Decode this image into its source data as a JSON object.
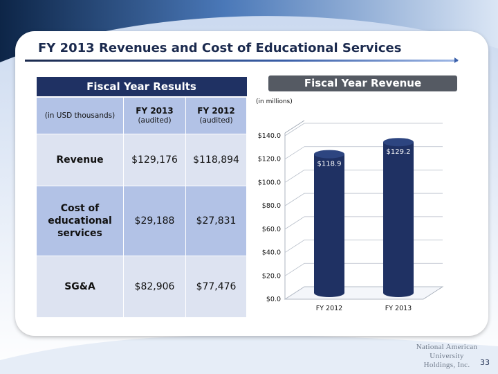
{
  "slide": {
    "title": "FY 2013 Revenues and Cost of Educational Services",
    "page_number": "33"
  },
  "table": {
    "caption": "Fiscal Year Results",
    "unit_label": "(in USD thousands)",
    "columns": [
      {
        "year": "FY 2013",
        "note": "(audited)"
      },
      {
        "year": "FY 2012",
        "note": "(audited)"
      }
    ],
    "rows": [
      {
        "label": [
          "Revenue"
        ],
        "values": [
          "$129,176",
          "$118,894"
        ]
      },
      {
        "label": [
          "Cost of",
          "educational",
          "services"
        ],
        "values": [
          "$29,188",
          "$27,831"
        ]
      },
      {
        "label": [
          "SG&A"
        ],
        "values": [
          "$82,906",
          "$77,476"
        ]
      }
    ]
  },
  "chart": {
    "header": "Fiscal Year Revenue",
    "unit_note": "(in millions)"
  },
  "chart_data": {
    "type": "bar",
    "categories": [
      "FY 2012",
      "FY 2013"
    ],
    "values": [
      118.9,
      129.2
    ],
    "data_labels": [
      "$118.9",
      "$129.2"
    ],
    "y_ticks": [
      "$0.0",
      "$20.0",
      "$40.0",
      "$60.0",
      "$80.0",
      "$100.0",
      "$120.0",
      "$140.0"
    ],
    "ylim": [
      0,
      140
    ],
    "grid": true,
    "bar_color": "#1f3163",
    "title": "",
    "xlabel": "",
    "ylabel": ""
  },
  "logo": {
    "line1": "National American University",
    "line2": "Holdings, Inc."
  },
  "colors": {
    "navy": "#1f3163",
    "row_light": "#dde3f1",
    "row_mid": "#b2c2e6"
  }
}
